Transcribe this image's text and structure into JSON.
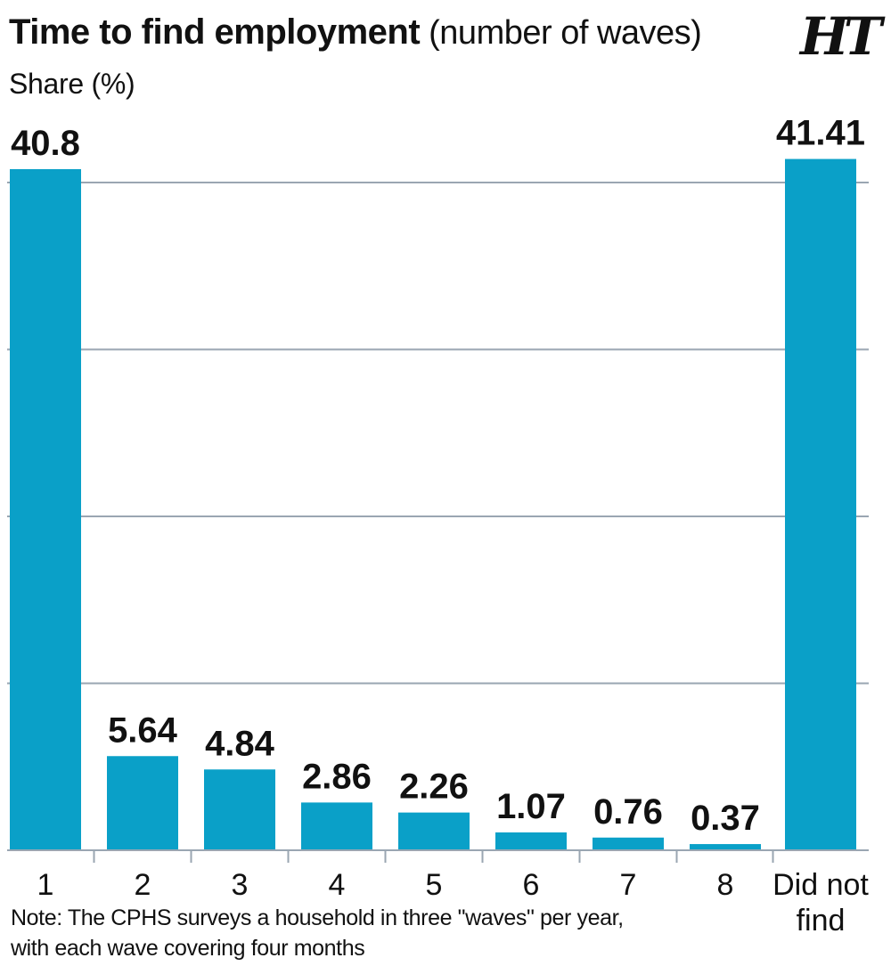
{
  "header": {
    "title": "Time to find employment",
    "title_suffix": "(number of waves)",
    "logo_text": "HT"
  },
  "note": {
    "line1": "Note: The CPHS surveys a household in three \"waves\" per year,",
    "line2": "with each wave covering four months"
  },
  "colors": {
    "bar": "#0aa0c8",
    "grid": "#9aa6b2",
    "text": "#111111"
  },
  "chart_data": {
    "type": "bar",
    "title": "Time to find employment (number of waves)",
    "ylabel": "Share (%)",
    "xlabel": "",
    "categories": [
      "1",
      "2",
      "3",
      "4",
      "5",
      "6",
      "7",
      "8",
      "Did not find"
    ],
    "category_lines": [
      [
        "1"
      ],
      [
        "2"
      ],
      [
        "3"
      ],
      [
        "4"
      ],
      [
        "5"
      ],
      [
        "6"
      ],
      [
        "7"
      ],
      [
        "8"
      ],
      [
        "Did not",
        "find"
      ]
    ],
    "values": [
      40.8,
      5.64,
      4.84,
      2.86,
      2.26,
      1.07,
      0.76,
      0.37,
      41.41
    ],
    "value_labels": [
      "40.8",
      "5.64",
      "4.84",
      "2.86",
      "2.26",
      "1.07",
      "0.76",
      "0.37",
      "41.41"
    ],
    "ylim": [
      0,
      40
    ],
    "grid": true,
    "legend": "none"
  }
}
